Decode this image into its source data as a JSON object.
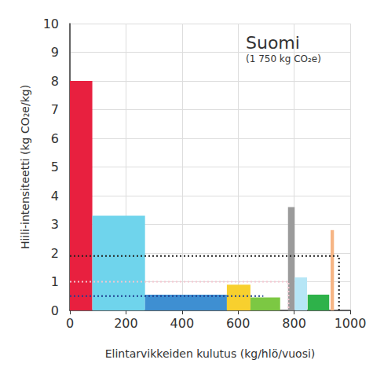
{
  "chart_data": {
    "type": "variable_width_bar",
    "title": "Suomi",
    "subtitle": "(1 750 kg CO₂e)",
    "x_label": "Elintarvikkeiden kulutus (kg/hlö/vuosi)",
    "y_label": "Hiili-intensiteetti (kg CO₂e/kg)",
    "bars": [
      {
        "x_start": 0,
        "x_end": 80,
        "value": 8.0,
        "color": "#e8203f"
      },
      {
        "x_start": 80,
        "x_end": 268,
        "value": 3.3,
        "color": "#6fd4ec"
      },
      {
        "x_start": 268,
        "x_end": 560,
        "value": 0.55,
        "color": "#3e8fd2"
      },
      {
        "x_start": 560,
        "x_end": 644,
        "value": 0.9,
        "color": "#f8d02e"
      },
      {
        "x_start": 644,
        "x_end": 750,
        "value": 0.45,
        "color": "#7cc843"
      },
      {
        "x_start": 778,
        "x_end": 802,
        "value": 3.6,
        "color": "#9b9b9b"
      },
      {
        "x_start": 802,
        "x_end": 846,
        "value": 1.15,
        "color": "#b6e6f6"
      },
      {
        "x_start": 848,
        "x_end": 925,
        "value": 0.55,
        "color": "#2eb24a"
      },
      {
        "x_start": 930,
        "x_end": 942,
        "value": 2.8,
        "color": "#f6b585"
      }
    ],
    "lines": [
      {
        "x": [
          0,
          960,
          960
        ],
        "values": [
          1.9,
          1.9,
          0
        ],
        "color": "#222222",
        "line_style": "dotted"
      },
      {
        "x": [
          0,
          780,
          780
        ],
        "values": [
          1.0,
          1.0,
          0
        ],
        "color": "#f4c6cf",
        "line_style": "dotted"
      },
      {
        "x": [
          0,
          690
        ],
        "values": [
          0.5,
          0.5
        ],
        "color": "#1f3f8f",
        "line_style": "dotted"
      }
    ],
    "xlim": [
      0,
      1000
    ],
    "xticks": [
      0,
      200,
      400,
      600,
      800,
      1000
    ],
    "ylim": [
      0,
      10
    ],
    "yticks": [
      0,
      1,
      2,
      3,
      4,
      5,
      6,
      7,
      8,
      9,
      10
    ],
    "grid": true
  }
}
